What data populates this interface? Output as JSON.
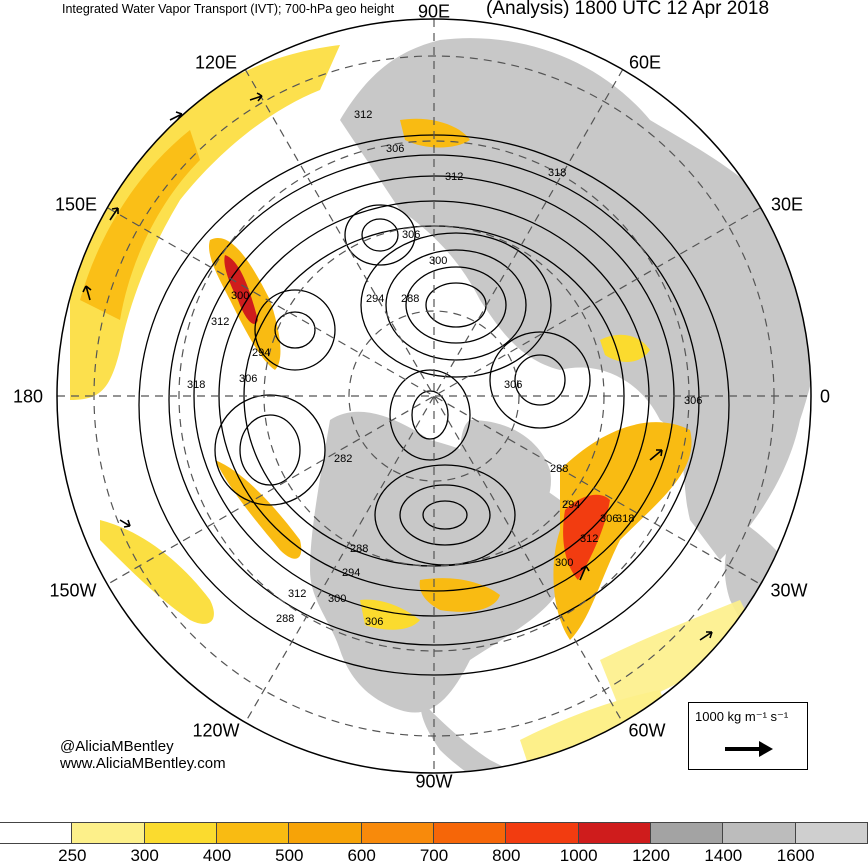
{
  "header": {
    "left_title": "Integrated Water Vapor Transport (IVT); 700-hPa geo height",
    "right_title": "(Analysis) 1800 UTC 12 Apr 2018"
  },
  "longitude_labels": {
    "l90e": "90E",
    "l120e": "120E",
    "l60e": "60E",
    "l150e": "150E",
    "l30e": "30E",
    "l180": "180",
    "l0": "0",
    "l150w": "150W",
    "l30w": "30W",
    "l120w": "120W",
    "l60w": "60W",
    "l90w": "90W"
  },
  "contour_labels": [
    "312",
    "306",
    "312",
    "318",
    "306",
    "300",
    "294",
    "288",
    "300",
    "312",
    "294",
    "318",
    "306",
    "306",
    "288",
    "282",
    "288",
    "294",
    "306",
    "318",
    "300",
    "312",
    "294",
    "288",
    "306",
    "312",
    "300",
    "306"
  ],
  "credits": {
    "handle": "@AliciaMBentley",
    "website": "www.AliciaMBentley.com"
  },
  "vector_legend": {
    "label": "1000 kg m⁻¹ s⁻¹"
  },
  "colorbar": {
    "labels": [
      "250",
      "300",
      "400",
      "500",
      "600",
      "700",
      "800",
      "1000",
      "1200",
      "1400",
      "1600"
    ],
    "colors": [
      "#ffffff",
      "#fdf08a",
      "#fbdb2e",
      "#f9bb12",
      "#f7a307",
      "#f88a0b",
      "#f66608",
      "#f23c10",
      "#cf1c1c",
      "#a3a3a3",
      "#bcbcbc",
      "#cfcfcf"
    ]
  },
  "colors": {
    "land": "#c8c8c8",
    "ocean": "#ffffff",
    "ivt_low": "#fdf08a",
    "ivt_mid": "#f9bb12",
    "ivt_high": "#f23c10",
    "ivt_max": "#cf1c1c"
  }
}
